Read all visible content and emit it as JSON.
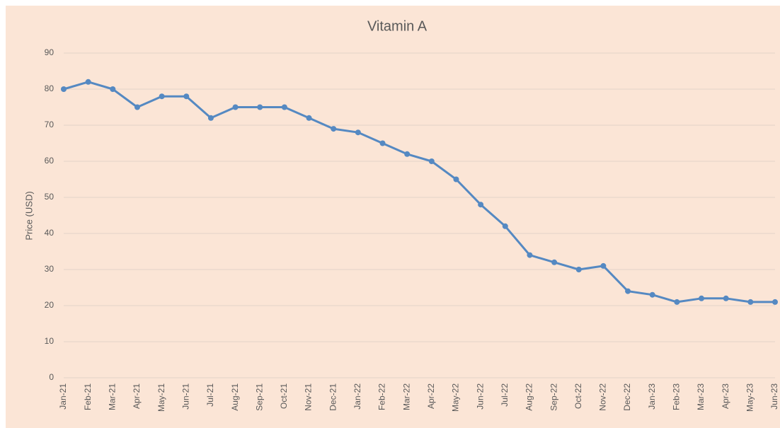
{
  "chart_data": {
    "type": "line",
    "title": "Vitamin A",
    "y_label": "Price (USD)",
    "categories": [
      "Jan-21",
      "Feb-21",
      "Mar-21",
      "Apr-21",
      "May-21",
      "Jun-21",
      "Jul-21",
      "Aug-21",
      "Sep-21",
      "Oct-21",
      "Nov-21",
      "Dec-21",
      "Jan-22",
      "Feb-22",
      "Mar-22",
      "Apr-22",
      "May-22",
      "Jun-22",
      "Jul-22",
      "Aug-22",
      "Sep-22",
      "Oct-22",
      "Nov-22",
      "Dec-22",
      "Jan-23",
      "Feb-23",
      "Mar-23",
      "Apr-23",
      "May-23",
      "Jun-23"
    ],
    "series": [
      {
        "name": "Vitamin A",
        "color": "#5589c2",
        "values": [
          80,
          82,
          80,
          75,
          78,
          78,
          72,
          75,
          75,
          75,
          72,
          69,
          68,
          65,
          62,
          60,
          55,
          48,
          42,
          34,
          32,
          30,
          31,
          24,
          23,
          21,
          22,
          22,
          21,
          21
        ]
      }
    ],
    "ylim": [
      0,
      90
    ],
    "yticks": [
      0,
      10,
      20,
      30,
      40,
      50,
      60,
      70,
      80,
      90
    ],
    "grid": true
  }
}
